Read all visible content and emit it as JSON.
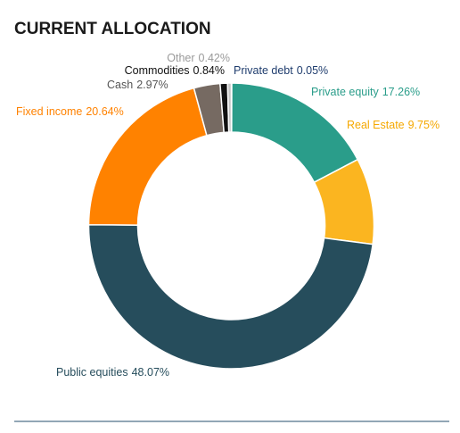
{
  "chart_data": {
    "type": "donut",
    "title": "CURRENT ALLOCATION",
    "categories": [
      "Private debt",
      "Private equity",
      "Real Estate",
      "Public equities",
      "Fixed income",
      "Cash",
      "Commodities",
      "Other"
    ],
    "values": [
      0.05,
      17.26,
      9.75,
      48.07,
      20.64,
      2.97,
      0.84,
      0.42
    ],
    "value_labels": [
      "0.05%",
      "17.26%",
      "9.75%",
      "48.07%",
      "20.64%",
      "2.97%",
      "0.84%",
      "0.42%"
    ],
    "colors": [
      "#9cc3e0",
      "#2a9d8a",
      "#fbb520",
      "#264d5c",
      "#ff8200",
      "#766a62",
      "#111111",
      "#c4c4c4"
    ]
  }
}
